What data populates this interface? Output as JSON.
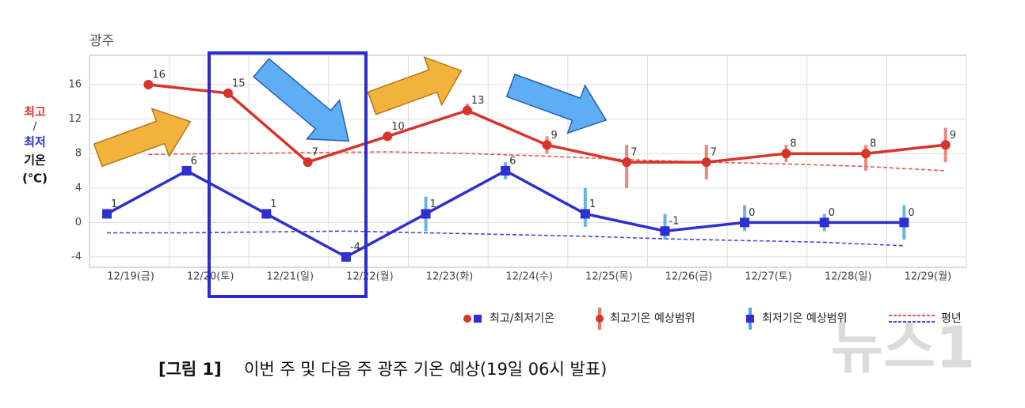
{
  "chart_data": {
    "type": "line",
    "title": "광주",
    "y_label": [
      "최고",
      "/",
      "최저",
      "기온",
      "(℃)"
    ],
    "categories": [
      "12/19(금)",
      "12/20(토)",
      "12/21(일)",
      "12/22(월)",
      "12/23(화)",
      "12/24(수)",
      "12/25(목)",
      "12/26(금)",
      "12/27(토)",
      "12/28(일)",
      "12/29(월)"
    ],
    "observed": {
      "name": "최고/최저기온",
      "high": {
        "color": "#d8342a",
        "values": [
          16,
          15,
          7,
          10,
          13,
          9,
          7,
          7,
          8,
          8,
          9
        ]
      },
      "low": {
        "color": "#2f2fd0",
        "values": [
          1,
          6,
          1,
          -4,
          1,
          6,
          1,
          -1,
          0,
          0,
          0
        ]
      }
    },
    "high_range": {
      "name": "최고기온 예상범위",
      "color": "#e8746a",
      "low": [
        null,
        null,
        null,
        null,
        12.5,
        8,
        4,
        5,
        7,
        6,
        7
      ],
      "high": [
        null,
        null,
        null,
        null,
        13.8,
        10,
        9,
        9,
        9,
        9,
        11
      ]
    },
    "low_range": {
      "name": "최저기온 예상범위",
      "color": "#4aa8e8",
      "low": [
        null,
        null,
        null,
        null,
        -1,
        5,
        -0.5,
        -2,
        -1,
        -1,
        -2
      ],
      "high": [
        null,
        null,
        null,
        null,
        3,
        7,
        4,
        1,
        2,
        1,
        2
      ]
    },
    "normal": {
      "name": "평년",
      "high_color": "#e05a50",
      "low_color": "#4848d8",
      "high": [
        7.9,
        8,
        8.1,
        8.2,
        8,
        7.7,
        7.3,
        7,
        6.8,
        6.5,
        6
      ],
      "low": [
        -1.2,
        -1.2,
        -1.1,
        -1,
        -1.2,
        -1.4,
        -1.6,
        -1.9,
        -2.1,
        -2.3,
        -2.7
      ]
    },
    "ylim": [
      -5.2,
      19.4
    ],
    "yticks": [
      -4,
      0,
      4,
      8,
      12,
      16
    ],
    "grid": true,
    "caption": {
      "label": "[그림 1]",
      "text": "이번 주 및 다음 주 광주 기온 예상(19일 06시 발표)"
    },
    "watermark": "뉴스1"
  }
}
